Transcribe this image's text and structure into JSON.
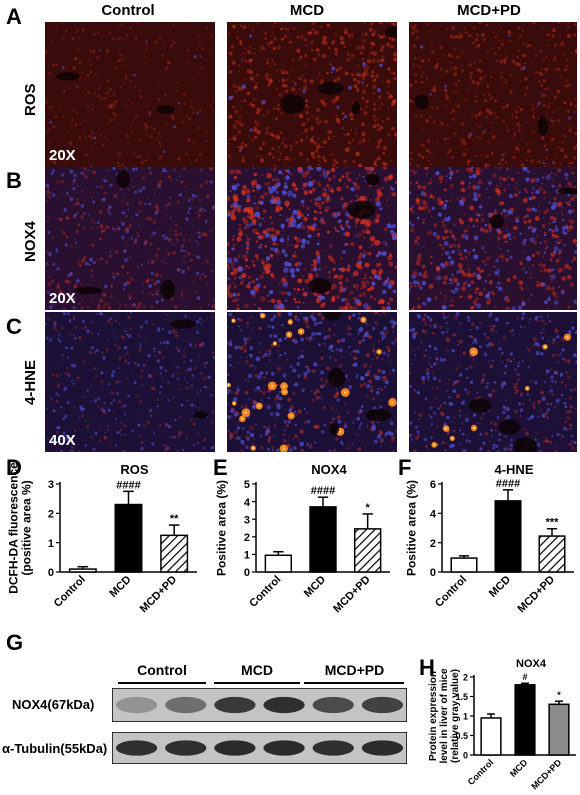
{
  "panel_labels": [
    "A",
    "B",
    "C",
    "D",
    "E",
    "F",
    "G",
    "H"
  ],
  "columns": [
    "Control",
    "MCD",
    "MCD+PD"
  ],
  "rows": [
    {
      "stain": "ROS",
      "mag": "20X",
      "base": "#3a0b0b",
      "spot": "#d8351e",
      "blue": 0.05,
      "intensity": [
        0.15,
        0.55,
        0.35
      ],
      "bright": [
        0,
        0,
        0
      ]
    },
    {
      "stain": "NOX4",
      "mag": "20X",
      "base": "#2a1030",
      "spot": "#e0301c",
      "blue": 0.45,
      "intensity": [
        0.35,
        0.95,
        0.7
      ],
      "bright": [
        0,
        0,
        0
      ]
    },
    {
      "stain": "4-HNE",
      "mag": "40X",
      "base": "#1c1036",
      "spot": "#c4302a",
      "blue": 0.6,
      "intensity": [
        0.25,
        0.55,
        0.45
      ],
      "bright": [
        0,
        22,
        8
      ]
    }
  ],
  "chart_data": [
    {
      "type": "bar",
      "panel": "D",
      "title": "ROS",
      "ylabel": "DCFH-DA fluorescence\n(positive area %)",
      "categories": [
        "Control",
        "MCD",
        "MCD+PD"
      ],
      "values": [
        0.1,
        2.3,
        1.25
      ],
      "errors": [
        0.08,
        0.45,
        0.35
      ],
      "annotations": [
        "",
        "####",
        "**"
      ],
      "ylim": [
        0,
        3
      ],
      "yticks": [
        0,
        1,
        2,
        3
      ],
      "fills": [
        "white",
        "black",
        "hatch"
      ]
    },
    {
      "type": "bar",
      "panel": "E",
      "title": "NOX4",
      "ylabel": "Positive area (%)",
      "categories": [
        "Control",
        "MCD",
        "MCD+PD"
      ],
      "values": [
        0.95,
        3.7,
        2.45
      ],
      "errors": [
        0.2,
        0.55,
        0.85
      ],
      "annotations": [
        "",
        "####",
        "*"
      ],
      "ylim": [
        0,
        5
      ],
      "yticks": [
        0,
        1,
        2,
        3,
        4,
        5
      ],
      "fills": [
        "white",
        "black",
        "hatch"
      ]
    },
    {
      "type": "bar",
      "panel": "F",
      "title": "4-HNE",
      "ylabel": "Positive area (%)",
      "categories": [
        "Control",
        "MCD",
        "MCD+PD"
      ],
      "values": [
        0.95,
        4.85,
        2.45
      ],
      "errors": [
        0.15,
        0.75,
        0.5
      ],
      "annotations": [
        "",
        "####",
        "***"
      ],
      "ylim": [
        0,
        6
      ],
      "yticks": [
        0,
        2,
        4,
        6
      ],
      "fills": [
        "white",
        "black",
        "hatch"
      ]
    },
    {
      "type": "bar",
      "panel": "H",
      "title": "NOX4",
      "ylabel": "Protein expression\nlevel in liver of mice\n(relative gray value)",
      "categories": [
        "Control",
        "MCD",
        "MCD+PD"
      ],
      "values": [
        0.95,
        1.8,
        1.3
      ],
      "errors": [
        0.1,
        0.04,
        0.08
      ],
      "annotations": [
        "",
        "#",
        "*"
      ],
      "ylim": [
        0,
        2.0
      ],
      "yticks": [
        0,
        0.5,
        1.0,
        1.5,
        2.0
      ],
      "fills": [
        "white",
        "black",
        "gray"
      ]
    }
  ],
  "blot": {
    "groups": [
      "Control",
      "MCD",
      "MCD+PD"
    ],
    "rows": [
      {
        "label": "NOX4(67kDa)",
        "intensities": [
          0.35,
          0.55,
          0.85,
          0.9,
          0.75,
          0.8
        ]
      },
      {
        "label": "α-Tubulin(55kDa)",
        "intensities": [
          0.9,
          0.9,
          0.92,
          0.92,
          0.9,
          0.92
        ]
      }
    ]
  }
}
